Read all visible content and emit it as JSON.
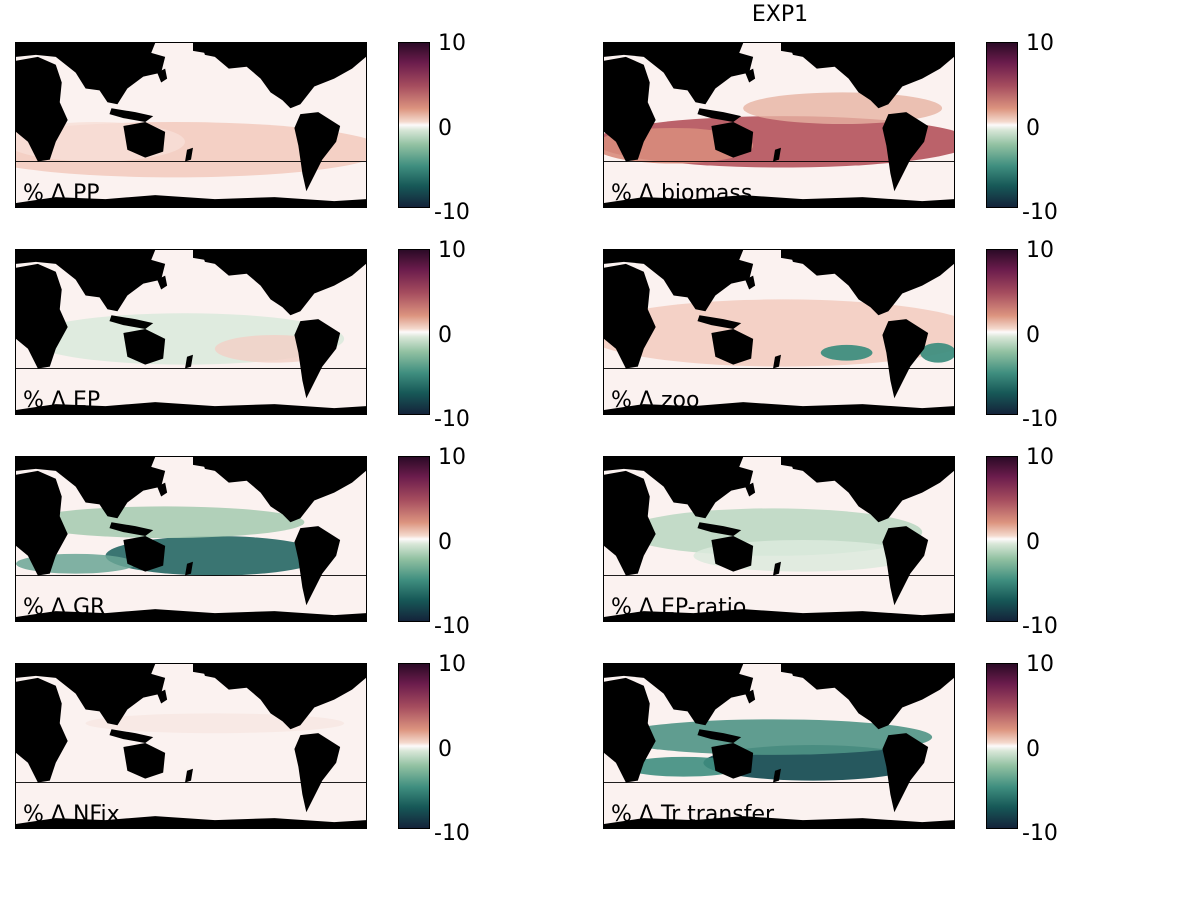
{
  "figure": {
    "title": "EXP1",
    "colorbar": {
      "ticks": [
        "10",
        "0",
        "-10"
      ],
      "range": [
        -10,
        10
      ],
      "colormap": [
        "#14233a",
        "#175958",
        "#3f8e7f",
        "#92c1a2",
        "#fdfafa",
        "#dc947f",
        "#a54c5e",
        "#6b1c4c",
        "#2b0a26"
      ]
    },
    "colors": {
      "land": "#000000",
      "ocean_neutral": "#fbf2f0",
      "positive": "#a54c5e",
      "negative": "#175958"
    }
  },
  "panels": [
    {
      "label": "% Δ PP",
      "pattern": "weak-positive"
    },
    {
      "label": "% Δ biomass",
      "pattern": "strong-positive"
    },
    {
      "label": "% Δ EP",
      "pattern": "mixed"
    },
    {
      "label": "% Δ zoo",
      "pattern": "positive-with-upwelling-negative"
    },
    {
      "label": "% Δ GR",
      "pattern": "negative"
    },
    {
      "label": "% Δ EP-ratio",
      "pattern": "weak-negative"
    },
    {
      "label": "% Δ NFix",
      "pattern": "near-zero"
    },
    {
      "label": "% Δ Tr transfer",
      "pattern": "strong-negative"
    }
  ],
  "chart_data": {
    "type": "heatmap",
    "title": "EXP1",
    "colorbar_range": [
      -10,
      10
    ],
    "colorbar_ticks": [
      10,
      0,
      -10
    ],
    "panels": [
      "% Δ PP",
      "% Δ biomass",
      "% Δ EP",
      "% Δ zoo",
      "% Δ GR",
      "% Δ EP-ratio",
      "% Δ NFix",
      "% Δ Tr transfer"
    ]
  }
}
